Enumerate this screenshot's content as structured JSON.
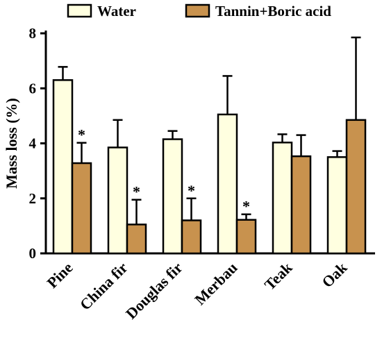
{
  "chart_data": {
    "type": "bar",
    "categories": [
      "Pine",
      "China fir",
      "Douglas fir",
      "Merbau",
      "Teak",
      "Oak"
    ],
    "series": [
      {
        "name": "Water",
        "color": "#FFFFE0",
        "values": [
          6.3,
          3.85,
          4.15,
          5.05,
          4.03,
          3.5
        ],
        "errors": [
          0.48,
          1.0,
          0.3,
          1.4,
          0.3,
          0.22
        ],
        "significance": [
          "",
          "",
          "",
          "",
          "",
          ""
        ]
      },
      {
        "name": "Tannin+Boric acid",
        "color": "#C8924E",
        "values": [
          3.28,
          1.05,
          1.2,
          1.22,
          3.53,
          4.85
        ],
        "errors": [
          0.74,
          0.9,
          0.8,
          0.2,
          0.77,
          3.0
        ],
        "significance": [
          "*",
          "*",
          "*",
          "*",
          "",
          ""
        ]
      }
    ],
    "ylabel": "Mass loss (%)",
    "xlabel": "",
    "ylim": [
      0,
      8
    ],
    "yticks": [
      0,
      2,
      4,
      6,
      8
    ],
    "legend_position": "top",
    "grid": false,
    "error_bars": "upper"
  }
}
